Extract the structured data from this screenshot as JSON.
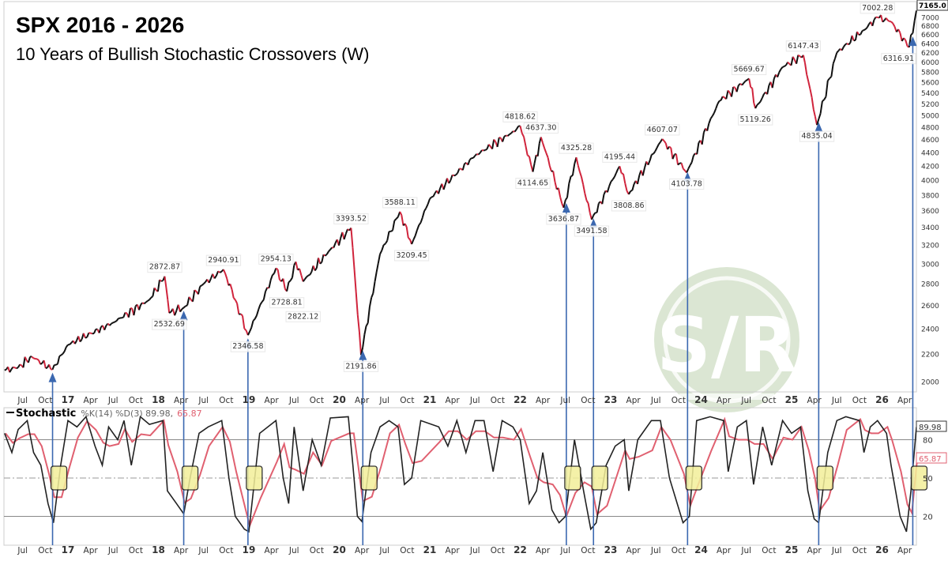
{
  "header": {
    "title": "SPX 2016 - 2026",
    "subtitle": "10 Years of Bullish Stochastic Crossovers (W)"
  },
  "watermark": {
    "text": "S/R"
  },
  "colors": {
    "up": "#111111",
    "down": "#d0243c",
    "k_line": "#222222",
    "d_line": "#e06070",
    "arrow": "#3b68b0",
    "highlight_box": "#f3ef9a",
    "watermark": "#dbe6d3"
  },
  "chart_data": [
    {
      "type": "line",
      "title": "SPX 2016 - 2026",
      "scale": "log",
      "ylim": [
        1950,
        7200
      ],
      "y_ticks": [
        2000,
        2200,
        2400,
        2600,
        2800,
        3000,
        3200,
        3400,
        3600,
        3800,
        4000,
        4200,
        4400,
        4600,
        4800,
        5000,
        5200,
        5400,
        5600,
        5800,
        6000,
        6200,
        6400,
        6600,
        6800,
        7000
      ],
      "last_value_label": "7165.0",
      "x_tick_labels": [
        {
          "t": 2016.5,
          "label": "Jul"
        },
        {
          "t": 2016.75,
          "label": "Oct"
        },
        {
          "t": 2017,
          "label": "17",
          "bold": true
        },
        {
          "t": 2017.25,
          "label": "Apr"
        },
        {
          "t": 2017.5,
          "label": "Jul"
        },
        {
          "t": 2017.75,
          "label": "Oct"
        },
        {
          "t": 2018,
          "label": "18",
          "bold": true
        },
        {
          "t": 2018.25,
          "label": "Apr"
        },
        {
          "t": 2018.5,
          "label": "Jul"
        },
        {
          "t": 2018.75,
          "label": "Oct"
        },
        {
          "t": 2019,
          "label": "19",
          "bold": true
        },
        {
          "t": 2019.25,
          "label": "Apr"
        },
        {
          "t": 2019.5,
          "label": "Jul"
        },
        {
          "t": 2019.75,
          "label": "Oct"
        },
        {
          "t": 2020,
          "label": "20",
          "bold": true
        },
        {
          "t": 2020.25,
          "label": "Apr"
        },
        {
          "t": 2020.5,
          "label": "Jul"
        },
        {
          "t": 2020.75,
          "label": "Oct"
        },
        {
          "t": 2021,
          "label": "21",
          "bold": true
        },
        {
          "t": 2021.25,
          "label": "Apr"
        },
        {
          "t": 2021.5,
          "label": "Jul"
        },
        {
          "t": 2021.75,
          "label": "Oct"
        },
        {
          "t": 2022,
          "label": "22",
          "bold": true
        },
        {
          "t": 2022.25,
          "label": "Apr"
        },
        {
          "t": 2022.5,
          "label": "Jul"
        },
        {
          "t": 2022.75,
          "label": "Oct"
        },
        {
          "t": 2023,
          "label": "23",
          "bold": true
        },
        {
          "t": 2023.25,
          "label": "Apr"
        },
        {
          "t": 2023.5,
          "label": "Jul"
        },
        {
          "t": 2023.75,
          "label": "Oct"
        },
        {
          "t": 2024,
          "label": "24",
          "bold": true
        },
        {
          "t": 2024.25,
          "label": "Apr"
        },
        {
          "t": 2024.5,
          "label": "Jul"
        },
        {
          "t": 2024.75,
          "label": "Oct"
        },
        {
          "t": 2025,
          "label": "25",
          "bold": true
        },
        {
          "t": 2025.25,
          "label": "Apr"
        },
        {
          "t": 2025.5,
          "label": "Jul"
        },
        {
          "t": 2025.75,
          "label": "Oct"
        },
        {
          "t": 2026,
          "label": "26",
          "bold": true
        },
        {
          "t": 2026.25,
          "label": "Apr"
        }
      ],
      "pivots": [
        {
          "t": 2016.3,
          "v": 2080
        },
        {
          "t": 2016.45,
          "v": 2100
        },
        {
          "t": 2016.6,
          "v": 2180
        },
        {
          "t": 2016.83,
          "v": 2085
        },
        {
          "t": 2017.0,
          "v": 2270
        },
        {
          "t": 2017.5,
          "v": 2450
        },
        {
          "t": 2017.9,
          "v": 2650
        },
        {
          "t": 2018.07,
          "v": 2872.87,
          "label": "2872.87",
          "pos": "above"
        },
        {
          "t": 2018.12,
          "v": 2532.69,
          "label": "2532.69",
          "pos": "below"
        },
        {
          "t": 2018.28,
          "v": 2580
        },
        {
          "t": 2018.5,
          "v": 2800
        },
        {
          "t": 2018.72,
          "v": 2940.91,
          "label": "2940.91",
          "pos": "above"
        },
        {
          "t": 2018.85,
          "v": 2650
        },
        {
          "t": 2018.99,
          "v": 2346.58,
          "label": "2346.58",
          "pos": "below"
        },
        {
          "t": 2019.3,
          "v": 2954.13,
          "label": "2954.13",
          "pos": "above"
        },
        {
          "t": 2019.42,
          "v": 2728.81,
          "label": "2728.81",
          "pos": "below"
        },
        {
          "t": 2019.52,
          "v": 3020
        },
        {
          "t": 2019.6,
          "v": 2822.12,
          "label": "2822.12",
          "pos": "below"
        },
        {
          "t": 2019.9,
          "v": 3150
        },
        {
          "t": 2020.13,
          "v": 3393.52,
          "label": "3393.52",
          "pos": "above"
        },
        {
          "t": 2020.24,
          "v": 2191.86,
          "label": "2191.86",
          "pos": "below"
        },
        {
          "t": 2020.45,
          "v": 3100
        },
        {
          "t": 2020.67,
          "v": 3588.11,
          "label": "3588.11",
          "pos": "above"
        },
        {
          "t": 2020.8,
          "v": 3209.45,
          "label": "3209.45",
          "pos": "below"
        },
        {
          "t": 2021.0,
          "v": 3750
        },
        {
          "t": 2021.5,
          "v": 4350
        },
        {
          "t": 2021.9,
          "v": 4700
        },
        {
          "t": 2022.0,
          "v": 4818.62,
          "label": "4818.62",
          "pos": "above"
        },
        {
          "t": 2022.14,
          "v": 4114.65,
          "label": "4114.65",
          "pos": "below"
        },
        {
          "t": 2022.23,
          "v": 4637.3,
          "label": "4637.30",
          "pos": "above"
        },
        {
          "t": 2022.48,
          "v": 3636.87,
          "label": "3636.87",
          "pos": "below"
        },
        {
          "t": 2022.62,
          "v": 4325.28,
          "label": "4325.28",
          "pos": "above"
        },
        {
          "t": 2022.79,
          "v": 3491.58,
          "label": "3491.58",
          "pos": "below"
        },
        {
          "t": 2023.1,
          "v": 4195.44,
          "label": "4195.44",
          "pos": "above"
        },
        {
          "t": 2023.2,
          "v": 3808.86,
          "label": "3808.86",
          "pos": "below"
        },
        {
          "t": 2023.57,
          "v": 4607.07,
          "label": "4607.07",
          "pos": "above"
        },
        {
          "t": 2023.84,
          "v": 4103.78,
          "label": "4103.78",
          "pos": "below"
        },
        {
          "t": 2024.2,
          "v": 5250
        },
        {
          "t": 2024.53,
          "v": 5669.67,
          "label": "5669.67",
          "pos": "above"
        },
        {
          "t": 2024.6,
          "v": 5119.26,
          "label": "5119.26",
          "pos": "below"
        },
        {
          "t": 2024.9,
          "v": 5900
        },
        {
          "t": 2025.13,
          "v": 6147.43,
          "label": "6147.43",
          "pos": "above"
        },
        {
          "t": 2025.28,
          "v": 4835.04,
          "label": "4835.04",
          "pos": "below"
        },
        {
          "t": 2025.5,
          "v": 6200
        },
        {
          "t": 2025.8,
          "v": 6700
        },
        {
          "t": 2025.95,
          "v": 7002.28,
          "label": "7002.28",
          "pos": "above"
        },
        {
          "t": 2026.1,
          "v": 6900
        },
        {
          "t": 2026.3,
          "v": 6316.91,
          "label": "6316.91",
          "pos": "below"
        },
        {
          "t": 2026.38,
          "v": 7165
        }
      ],
      "signal_dates": [
        2016.83,
        2018.28,
        2018.99,
        2020.26,
        2022.51,
        2022.81,
        2023.85,
        2025.3,
        2026.34
      ]
    },
    {
      "type": "line",
      "title": "Stochastic",
      "legend_text": "%K(14) %D(3) 89.98,",
      "d_value_text": "65.87",
      "k_last": "89.98",
      "d_last": "65.87",
      "ylim": [
        0,
        100
      ],
      "y_ticks": [
        20,
        50,
        80
      ],
      "levels": {
        "upper": 80,
        "mid": 50,
        "lower": 20
      },
      "k": [
        [
          2016.3,
          85
        ],
        [
          2016.38,
          70
        ],
        [
          2016.45,
          88
        ],
        [
          2016.55,
          95
        ],
        [
          2016.62,
          70
        ],
        [
          2016.7,
          60
        ],
        [
          2016.78,
          30
        ],
        [
          2016.84,
          15
        ],
        [
          2016.92,
          60
        ],
        [
          2017.0,
          95
        ],
        [
          2017.1,
          90
        ],
        [
          2017.2,
          98
        ],
        [
          2017.3,
          75
        ],
        [
          2017.38,
          60
        ],
        [
          2017.45,
          90
        ],
        [
          2017.55,
          80
        ],
        [
          2017.62,
          95
        ],
        [
          2017.7,
          60
        ],
        [
          2017.8,
          98
        ],
        [
          2017.9,
          92
        ],
        [
          2018.05,
          95
        ],
        [
          2018.1,
          40
        ],
        [
          2018.2,
          30
        ],
        [
          2018.28,
          22
        ],
        [
          2018.35,
          50
        ],
        [
          2018.45,
          85
        ],
        [
          2018.55,
          90
        ],
        [
          2018.7,
          95
        ],
        [
          2018.78,
          50
        ],
        [
          2018.85,
          20
        ],
        [
          2018.95,
          10
        ],
        [
          2019.0,
          8
        ],
        [
          2019.12,
          85
        ],
        [
          2019.3,
          95
        ],
        [
          2019.38,
          50
        ],
        [
          2019.44,
          30
        ],
        [
          2019.5,
          90
        ],
        [
          2019.6,
          40
        ],
        [
          2019.7,
          80
        ],
        [
          2019.8,
          60
        ],
        [
          2019.9,
          97
        ],
        [
          2020.1,
          98
        ],
        [
          2020.15,
          60
        ],
        [
          2020.2,
          20
        ],
        [
          2020.25,
          16
        ],
        [
          2020.35,
          70
        ],
        [
          2020.45,
          90
        ],
        [
          2020.55,
          95
        ],
        [
          2020.65,
          90
        ],
        [
          2020.72,
          45
        ],
        [
          2020.8,
          50
        ],
        [
          2020.9,
          95
        ],
        [
          2021.1,
          90
        ],
        [
          2021.2,
          75
        ],
        [
          2021.3,
          95
        ],
        [
          2021.4,
          70
        ],
        [
          2021.5,
          95
        ],
        [
          2021.6,
          95
        ],
        [
          2021.7,
          55
        ],
        [
          2021.8,
          95
        ],
        [
          2021.92,
          90
        ],
        [
          2022.0,
          80
        ],
        [
          2022.1,
          30
        ],
        [
          2022.18,
          40
        ],
        [
          2022.25,
          70
        ],
        [
          2022.35,
          25
        ],
        [
          2022.43,
          15
        ],
        [
          2022.5,
          20
        ],
        [
          2022.6,
          80
        ],
        [
          2022.7,
          40
        ],
        [
          2022.78,
          10
        ],
        [
          2022.84,
          15
        ],
        [
          2022.95,
          60
        ],
        [
          2023.05,
          75
        ],
        [
          2023.15,
          80
        ],
        [
          2023.2,
          40
        ],
        [
          2023.3,
          80
        ],
        [
          2023.45,
          95
        ],
        [
          2023.55,
          95
        ],
        [
          2023.65,
          50
        ],
        [
          2023.8,
          15
        ],
        [
          2023.87,
          20
        ],
        [
          2023.95,
          95
        ],
        [
          2024.1,
          98
        ],
        [
          2024.25,
          95
        ],
        [
          2024.3,
          55
        ],
        [
          2024.4,
          90
        ],
        [
          2024.5,
          95
        ],
        [
          2024.58,
          45
        ],
        [
          2024.68,
          90
        ],
        [
          2024.78,
          60
        ],
        [
          2024.9,
          95
        ],
        [
          2025.0,
          85
        ],
        [
          2025.1,
          90
        ],
        [
          2025.18,
          40
        ],
        [
          2025.25,
          18
        ],
        [
          2025.3,
          15
        ],
        [
          2025.4,
          70
        ],
        [
          2025.5,
          95
        ],
        [
          2025.6,
          98
        ],
        [
          2025.75,
          95
        ],
        [
          2025.8,
          70
        ],
        [
          2025.87,
          90
        ],
        [
          2025.95,
          95
        ],
        [
          2026.05,
          85
        ],
        [
          2026.1,
          60
        ],
        [
          2026.2,
          20
        ],
        [
          2026.27,
          8
        ],
        [
          2026.32,
          40
        ],
        [
          2026.38,
          89.98
        ]
      ]
    }
  ]
}
